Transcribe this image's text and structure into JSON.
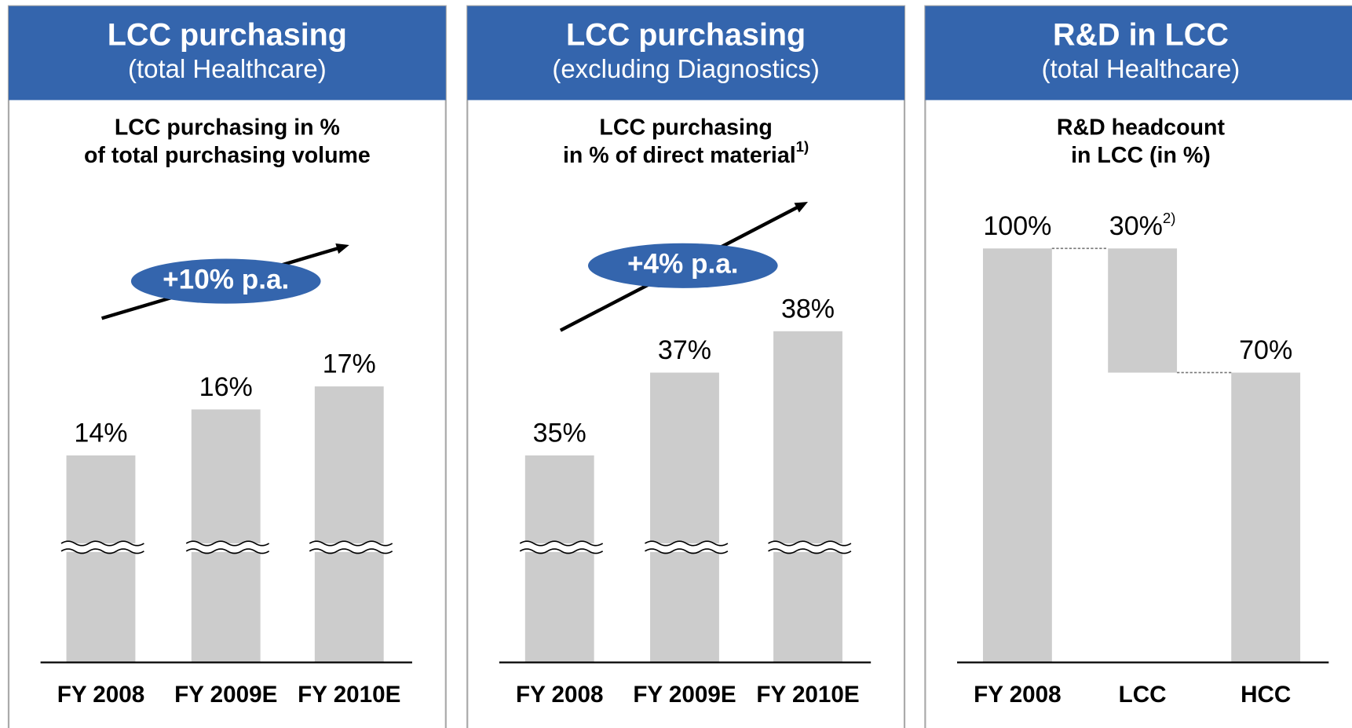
{
  "chart_data": [
    {
      "type": "bar",
      "title": "LCC purchasing",
      "subtitle": "(total Healthcare)",
      "heading": [
        "LCC purchasing in %",
        "of total purchasing volume"
      ],
      "categories": [
        "FY 2008",
        "FY 2009E",
        "FY 2010E"
      ],
      "values": [
        14,
        16,
        17
      ],
      "value_labels": [
        "14%",
        "16%",
        "17%"
      ],
      "annotation": "+10% p.a.",
      "color": "#cccccc",
      "ylim": [
        5,
        23
      ],
      "axis_break": true
    },
    {
      "type": "bar",
      "title": "LCC purchasing",
      "subtitle": "(excluding Diagnostics)",
      "heading": [
        "LCC purchasing",
        "in % of direct material"
      ],
      "heading_note": "1)",
      "categories": [
        "FY 2008",
        "FY 2009E",
        "FY 2010E"
      ],
      "values": [
        35,
        37,
        38
      ],
      "value_labels": [
        "35%",
        "37%",
        "38%"
      ],
      "annotation": "+4% p.a.",
      "color": "#cccccc",
      "ylim": [
        30,
        40
      ],
      "axis_break": true
    },
    {
      "type": "waterfall",
      "title": "R&D in LCC",
      "subtitle": "(total Healthcare)",
      "heading": [
        "R&D headcount",
        "in LCC (in %)"
      ],
      "categories": [
        "FY 2008",
        "LCC",
        "HCC"
      ],
      "values": [
        100,
        30,
        70
      ],
      "measures": [
        "total",
        "decrease",
        "total"
      ],
      "value_labels": [
        "100%",
        "30%",
        "70%"
      ],
      "value_label_notes": [
        null,
        "2)",
        null
      ],
      "color": "#cccccc",
      "ylim": [
        0,
        100
      ]
    }
  ]
}
